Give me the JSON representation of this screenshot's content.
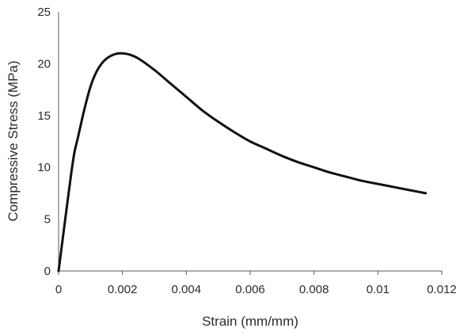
{
  "chart_data": {
    "type": "line",
    "title": "",
    "xlabel": "Strain (mm/mm)",
    "ylabel": "Compressive Stress (MPa)",
    "xlim": [
      0,
      0.012
    ],
    "ylim": [
      0,
      25
    ],
    "x_ticks": [
      "0",
      "0.002",
      "0.004",
      "0.006",
      "0.008",
      "0.01",
      "0.012"
    ],
    "y_ticks": [
      "0",
      "5",
      "10",
      "15",
      "20",
      "25"
    ],
    "grid": false,
    "legend": "none",
    "series": [
      {
        "color": "#111111",
        "x": [
          0,
          0.0002,
          0.0004,
          0.0005,
          0.0006,
          0.0008,
          0.001,
          0.0012,
          0.0014,
          0.0016,
          0.0018,
          0.002,
          0.0022,
          0.0025,
          0.003,
          0.0035,
          0.004,
          0.0045,
          0.005,
          0.0055,
          0.006,
          0.0065,
          0.007,
          0.0075,
          0.008,
          0.0085,
          0.009,
          0.0095,
          0.01,
          0.0105,
          0.011,
          0.0115
        ],
        "y": [
          0,
          4.8,
          9.5,
          11.5,
          12.8,
          15.5,
          17.8,
          19.3,
          20.2,
          20.7,
          20.95,
          21.0,
          20.9,
          20.5,
          19.4,
          18.1,
          16.8,
          15.5,
          14.4,
          13.4,
          12.5,
          11.8,
          11.1,
          10.5,
          10.0,
          9.5,
          9.1,
          8.7,
          8.4,
          8.1,
          7.8,
          7.5
        ]
      }
    ]
  }
}
